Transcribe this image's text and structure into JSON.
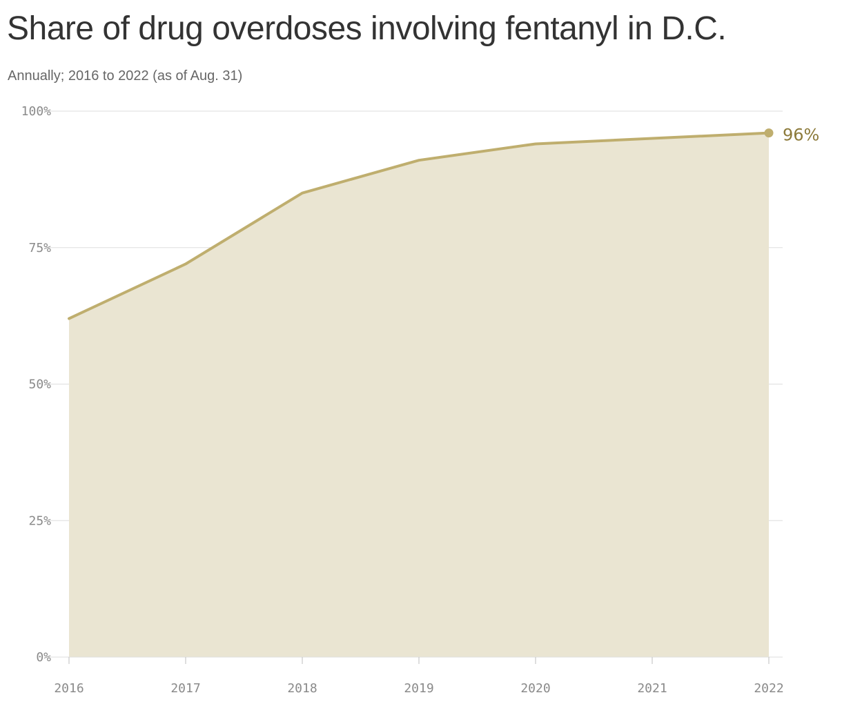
{
  "title": "Share of drug overdoses involving fentanyl in D.C.",
  "subtitle": "Annually; 2016 to 2022 (as of Aug. 31)",
  "colors": {
    "line": "#bfae6e",
    "area": "#eae5d2",
    "end_label": "#8c7a3a",
    "grid": "#dedede",
    "tick_text": "#8a8a8a",
    "title": "#333333",
    "subtitle": "#666666"
  },
  "chart_data": {
    "type": "area",
    "x": [
      "2016",
      "2017",
      "2018",
      "2019",
      "2020",
      "2021",
      "2022"
    ],
    "series": [
      {
        "values": [
          62,
          72,
          85,
          91,
          94,
          95,
          96
        ]
      }
    ],
    "y_ticks": [
      0,
      25,
      50,
      75,
      100
    ],
    "y_tick_labels": [
      "0%",
      "25%",
      "50%",
      "75%",
      "100%"
    ],
    "ylim": [
      0,
      100
    ],
    "grid": true,
    "end_label": "96%",
    "xlabel": "",
    "ylabel": ""
  }
}
